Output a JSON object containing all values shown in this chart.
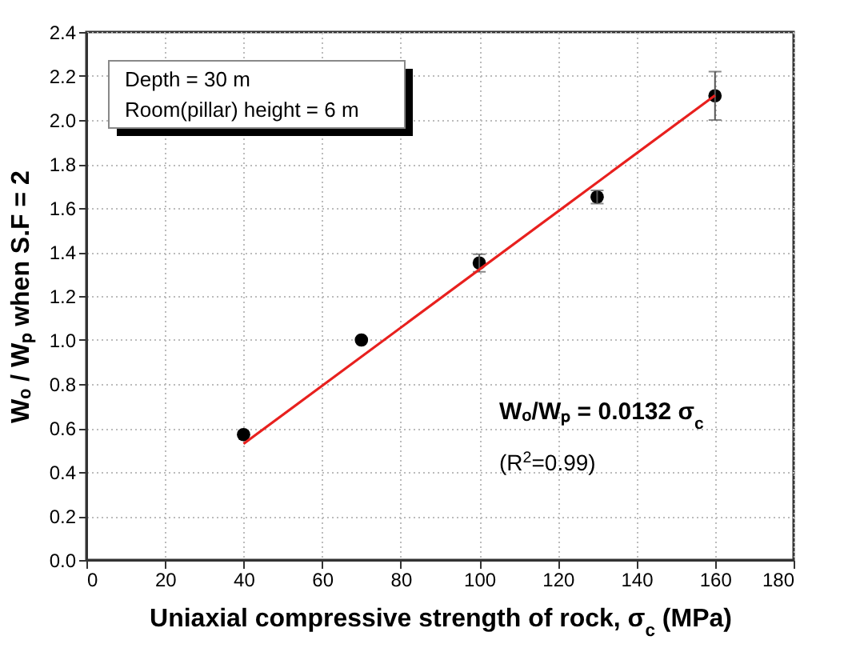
{
  "chart_data": {
    "type": "scatter",
    "xlabel": "Uniaxial compressive strength of rock, σ$_{c}$ (MPa)",
    "ylabel": "Wₒ / Wₚ when S.F = 2",
    "xlim": [
      0,
      180
    ],
    "xticks": [
      0,
      20,
      40,
      60,
      80,
      100,
      120,
      140,
      160,
      180
    ],
    "ylim": [
      0,
      2.4
    ],
    "yticks": [
      {
        "value": 0,
        "label": "0.0"
      },
      {
        "value": 0.2,
        "label": "0.2"
      },
      {
        "value": 0.4,
        "label": "0.4"
      },
      {
        "value": 0.6,
        "label": "0.6"
      },
      {
        "value": 0.8,
        "label": "0.8"
      },
      {
        "value": 1.0,
        "label": "1.0"
      },
      {
        "value": 1.2,
        "label": "1.2"
      },
      {
        "value": 1.4,
        "label": "1.4"
      },
      {
        "value": 1.6,
        "label": "1.6"
      },
      {
        "value": 1.8,
        "label": "1.8"
      },
      {
        "value": 2.0,
        "label": "2.0"
      },
      {
        "value": 2.2,
        "label": "2.2"
      },
      {
        "value": 2.4,
        "label": "2.4"
      }
    ],
    "grid": true,
    "marker": "circle",
    "series": [
      {
        "color": "#000000",
        "x": [
          40,
          70,
          100,
          130,
          160
        ],
        "values": [
          0.57,
          1.0,
          1.35,
          1.65,
          2.11
        ],
        "errors": [
          null,
          null,
          0.04,
          0.03,
          [
            2.0,
            2.22
          ]
        ]
      },
      {
        "type": "line",
        "color": "#e8201e",
        "x": [
          40,
          160
        ],
        "values": [
          0.528,
          2.112
        ],
        "marker": "none"
      }
    ],
    "annotations": [
      "Depth = 30 m",
      "Room(pillar) height = 6 m",
      "Wₒ/Wₚ = 0.0132 σ$_{c}$",
      "(R$^{2}$=0.99)"
    ]
  }
}
